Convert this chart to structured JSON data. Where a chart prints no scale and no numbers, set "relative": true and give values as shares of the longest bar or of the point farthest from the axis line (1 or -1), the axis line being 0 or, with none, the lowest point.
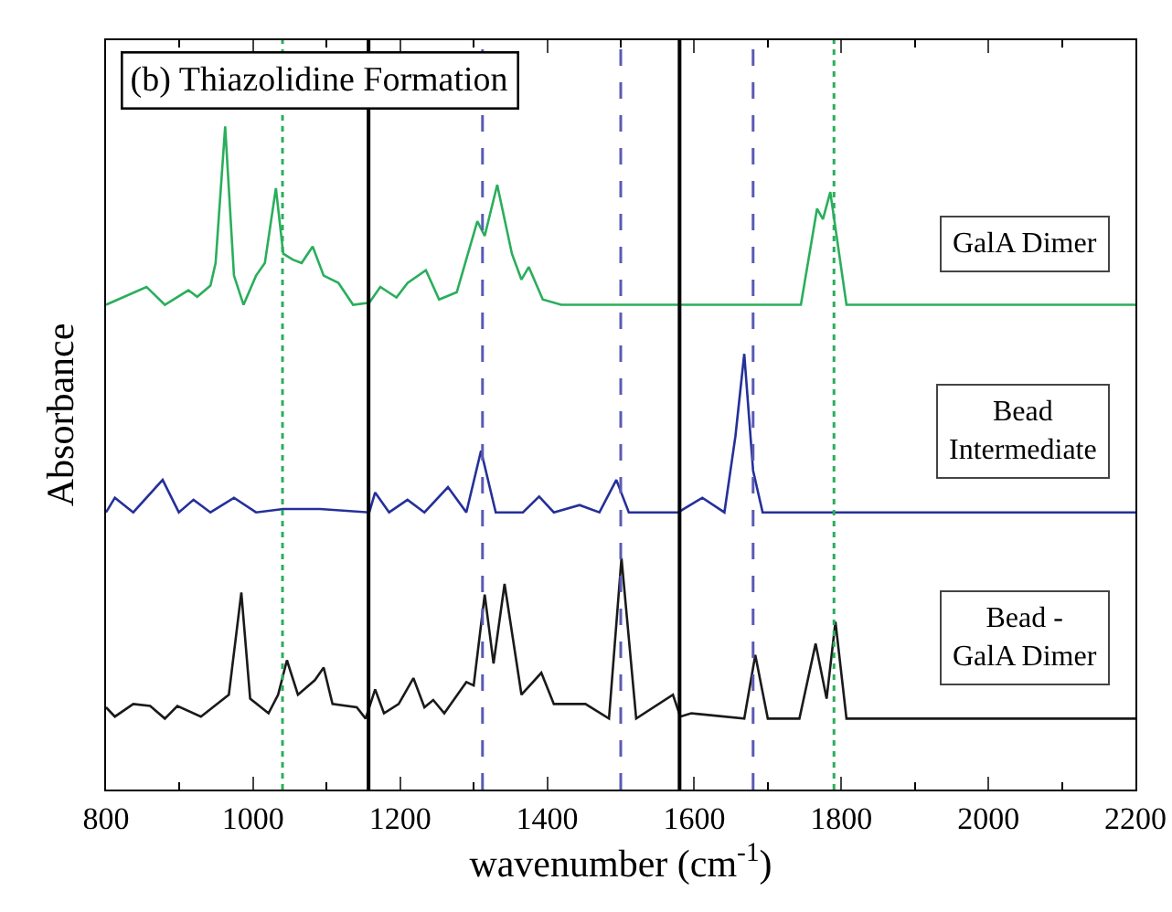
{
  "chart_data": {
    "type": "line",
    "title": "(b) Thiazolidine Formation",
    "xlabel": "wavenumber (cm$^{-1}$)",
    "ylabel": "Absorbance",
    "relative": true,
    "legend": false,
    "grid": false,
    "marker": "none",
    "line_style": "solid",
    "xlim": [
      800,
      2200
    ],
    "xticks": [
      800,
      1000,
      1200,
      1400,
      1600,
      1800,
      2000,
      2200
    ],
    "series": [
      {
        "name": "GalA Dimer",
        "color": "#2aae5c",
        "x": [
          800,
          855,
          880,
          912,
          924,
          942,
          949,
          962,
          974,
          987,
          1004,
          1016,
          1031,
          1041,
          1054,
          1066,
          1081,
          1096,
          1116,
          1136,
          1158,
          1173,
          1195,
          1210,
          1235,
          1253,
          1277,
          1305,
          1315,
          1332,
          1352,
          1365,
          1375,
          1394,
          1419,
          1745,
          1767,
          1775,
          1785,
          1807,
          2200
        ],
        "values": [
          0.731,
          0.758,
          0.731,
          0.753,
          0.743,
          0.76,
          0.794,
          1,
          0.775,
          0.731,
          0.775,
          0.794,
          0.907,
          0.808,
          0.799,
          0.794,
          0.819,
          0.775,
          0.764,
          0.731,
          0.734,
          0.758,
          0.742,
          0.764,
          0.783,
          0.739,
          0.75,
          0.857,
          0.835,
          0.912,
          0.808,
          0.769,
          0.788,
          0.739,
          0.731,
          0.731,
          0.876,
          0.86,
          0.901,
          0.731,
          0.731
        ]
      },
      {
        "name": "Bead Intermediate",
        "color": "#25309a",
        "x": [
          800,
          812,
          837,
          877,
          899,
          919,
          942,
          974,
          1004,
          1041,
          1091,
          1158,
          1166,
          1185,
          1210,
          1233,
          1265,
          1290,
          1310,
          1330,
          1367,
          1389,
          1409,
          1444,
          1471,
          1494,
          1511,
          1578,
          1611,
          1641,
          1656,
          1668,
          1680,
          1693,
          2200
        ],
        "values": [
          0.418,
          0.44,
          0.418,
          0.467,
          0.418,
          0.437,
          0.418,
          0.44,
          0.418,
          0.423,
          0.423,
          0.418,
          0.448,
          0.418,
          0.437,
          0.418,
          0.456,
          0.418,
          0.511,
          0.418,
          0.418,
          0.442,
          0.418,
          0.429,
          0.418,
          0.467,
          0.418,
          0.418,
          0.44,
          0.418,
          0.533,
          0.657,
          0.481,
          0.418,
          0.418
        ]
      },
      {
        "name": "Bead - GalA Dimer",
        "color": "#1a1a1a",
        "x": [
          800,
          812,
          837,
          860,
          880,
          897,
          929,
          967,
          984,
          996,
          1021,
          1034,
          1046,
          1061,
          1084,
          1096,
          1108,
          1141,
          1153,
          1166,
          1178,
          1198,
          1218,
          1233,
          1245,
          1260,
          1290,
          1300,
          1315,
          1327,
          1342,
          1365,
          1392,
          1409,
          1452,
          1484,
          1501,
          1521,
          1571,
          1581,
          1596,
          1668,
          1683,
          1700,
          1743,
          1765,
          1780,
          1792,
          1807,
          2200
        ],
        "values": [
          0.124,
          0.11,
          0.129,
          0.126,
          0.107,
          0.126,
          0.11,
          0.143,
          0.297,
          0.137,
          0.115,
          0.143,
          0.195,
          0.143,
          0.165,
          0.184,
          0.129,
          0.124,
          0.107,
          0.151,
          0.115,
          0.129,
          0.168,
          0.124,
          0.135,
          0.115,
          0.162,
          0.157,
          0.294,
          0.19,
          0.31,
          0.143,
          0.176,
          0.129,
          0.129,
          0.107,
          0.349,
          0.107,
          0.143,
          0.11,
          0.115,
          0.107,
          0.203,
          0.107,
          0.107,
          0.22,
          0.137,
          0.253,
          0.107,
          0.107
        ]
      }
    ],
    "ref_lines": [
      {
        "axis": "x",
        "value": 1040,
        "color": "#2aae5c",
        "line_style": "dotted"
      },
      {
        "axis": "x",
        "value": 1790,
        "color": "#2aae5c",
        "line_style": "dotted"
      },
      {
        "axis": "x",
        "value": 1312,
        "color": "#5a5ab4",
        "line_style": "dashed"
      },
      {
        "axis": "x",
        "value": 1500,
        "color": "#5a5ab4",
        "line_style": "dashed"
      },
      {
        "axis": "x",
        "value": 1680,
        "color": "#5a5ab4",
        "line_style": "dashed"
      },
      {
        "axis": "x",
        "value": 1157,
        "color": "#000000",
        "line_style": "solid"
      },
      {
        "axis": "x",
        "value": 1580,
        "color": "#000000",
        "line_style": "solid"
      }
    ]
  }
}
